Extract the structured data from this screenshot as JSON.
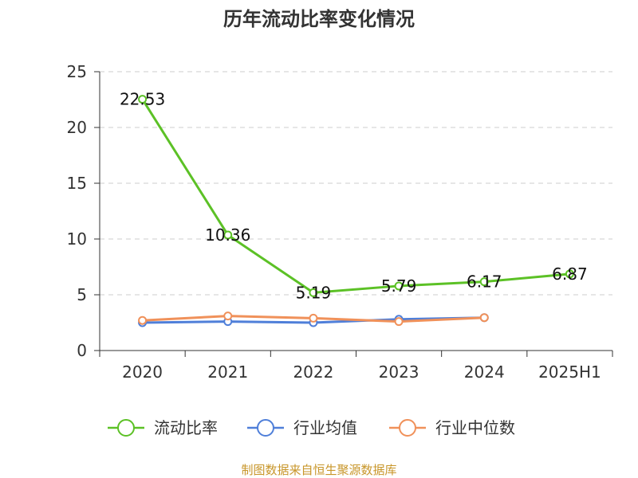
{
  "chart_data": {
    "type": "line",
    "title": "历年流动比率变化情况",
    "categories": [
      "2020",
      "2021",
      "2022",
      "2023",
      "2024",
      "2025H1"
    ],
    "y_ticks": [
      "0",
      "5",
      "10",
      "15",
      "20",
      "25"
    ],
    "ylim": [
      0,
      25
    ],
    "grid": "horizontal dashed",
    "legend_position": "bottom",
    "series": [
      {
        "name": "流动比率",
        "color": "#5cc126",
        "values": [
          22.53,
          10.36,
          5.19,
          5.79,
          6.17,
          6.87
        ],
        "labels": [
          "22.53",
          "10.36",
          "5.19",
          "5.79",
          "6.17",
          "6.87"
        ]
      },
      {
        "name": "行业均值",
        "color": "#4f7fd9",
        "values": [
          2.5,
          2.6,
          2.5,
          2.8,
          2.95,
          null
        ]
      },
      {
        "name": "行业中位数",
        "color": "#f0915a",
        "values": [
          2.7,
          3.1,
          2.9,
          2.6,
          2.95,
          null
        ]
      }
    ]
  },
  "footer": {
    "source": "制图数据来自恒生聚源数据库"
  }
}
